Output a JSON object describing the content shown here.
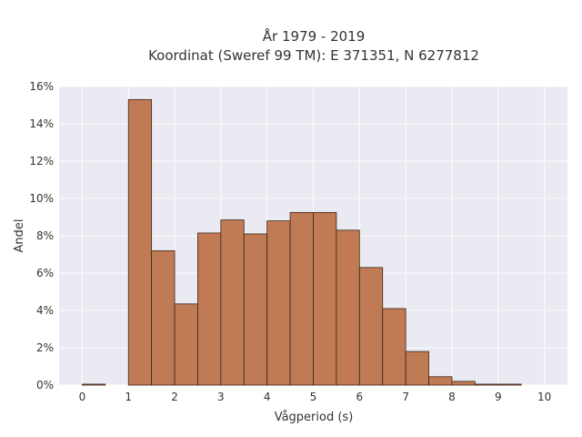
{
  "chart_data": {
    "type": "bar",
    "title_line1": "År 1979 - 2019",
    "title_line2": "Koordinat (Sweref 99 TM): E 371351, N 6277812",
    "xlabel": "Vågperiod (s)",
    "ylabel": "Andel",
    "xlim": [
      -0.5,
      10.5
    ],
    "ylim": [
      0,
      16
    ],
    "x_ticks": [
      0,
      1,
      2,
      3,
      4,
      5,
      6,
      7,
      8,
      9,
      10
    ],
    "y_ticks": [
      "0%",
      "2%",
      "4%",
      "6%",
      "8%",
      "10%",
      "12%",
      "14%",
      "16%"
    ],
    "y_tick_values": [
      0,
      2,
      4,
      6,
      8,
      10,
      12,
      14,
      16
    ],
    "bin_width": 0.5,
    "bin_starts": [
      0,
      0.5,
      1,
      1.5,
      2,
      2.5,
      3,
      3.5,
      4,
      4.5,
      5,
      5.5,
      6,
      6.5,
      7,
      7.5,
      8,
      8.5,
      9,
      9.5
    ],
    "values": [
      0.05,
      0,
      15.3,
      7.2,
      4.35,
      8.15,
      8.85,
      8.1,
      8.8,
      9.25,
      9.25,
      8.3,
      6.3,
      4.1,
      1.8,
      0.45,
      0.2,
      0.05,
      0.05,
      0
    ],
    "grid": true,
    "colors": {
      "background": "#e9eaf2",
      "grid": "#ffffff",
      "bar_fill": "#c07a54",
      "bar_edge": "#3d2618"
    }
  }
}
